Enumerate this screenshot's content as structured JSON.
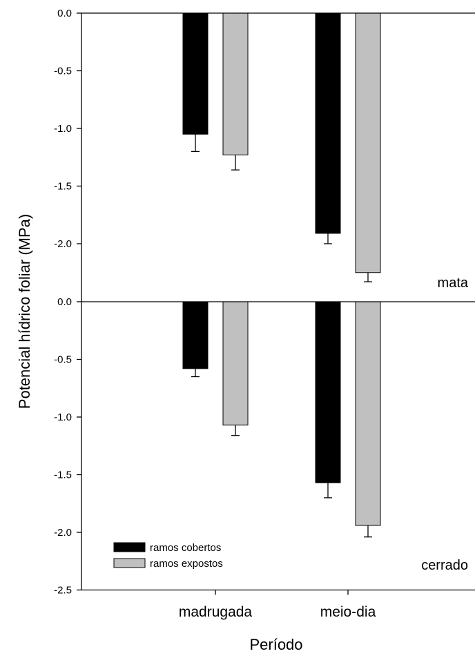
{
  "chart_data": {
    "type": "bar",
    "xlabel": "Período",
    "ylabel": "Potencial hídrico foliar (MPa)",
    "categories": [
      "madrugada",
      "meio-dia"
    ],
    "legend": {
      "placement": "bottom-left",
      "entries": [
        "ramos cobertos",
        "ramos expostos"
      ]
    },
    "colors": {
      "ramos cobertos": "#000000",
      "ramos expostos": "#c0c0c0"
    },
    "panels": [
      {
        "label": "mata",
        "ylim": [
          -2.5,
          0
        ],
        "yticks": [
          "0.0",
          "-0.5",
          "-1.0",
          "-1.5",
          "-2.0"
        ],
        "series": [
          {
            "name": "ramos cobertos",
            "values": [
              -1.05,
              -1.91
            ],
            "errors": [
              0.15,
              0.09
            ]
          },
          {
            "name": "ramos expostos",
            "values": [
              -1.23,
              -2.25
            ],
            "errors": [
              0.13,
              0.08
            ]
          }
        ]
      },
      {
        "label": "cerrado",
        "ylim": [
          -2.5,
          0
        ],
        "yticks": [
          "0.0",
          "-0.5",
          "-1.0",
          "-1.5",
          "-2.0",
          "-2.5"
        ],
        "series": [
          {
            "name": "ramos cobertos",
            "values": [
              -0.58,
              -1.57
            ],
            "errors": [
              0.07,
              0.13
            ]
          },
          {
            "name": "ramos expostos",
            "values": [
              -1.07,
              -1.94
            ],
            "errors": [
              0.09,
              0.1
            ]
          }
        ]
      }
    ]
  }
}
